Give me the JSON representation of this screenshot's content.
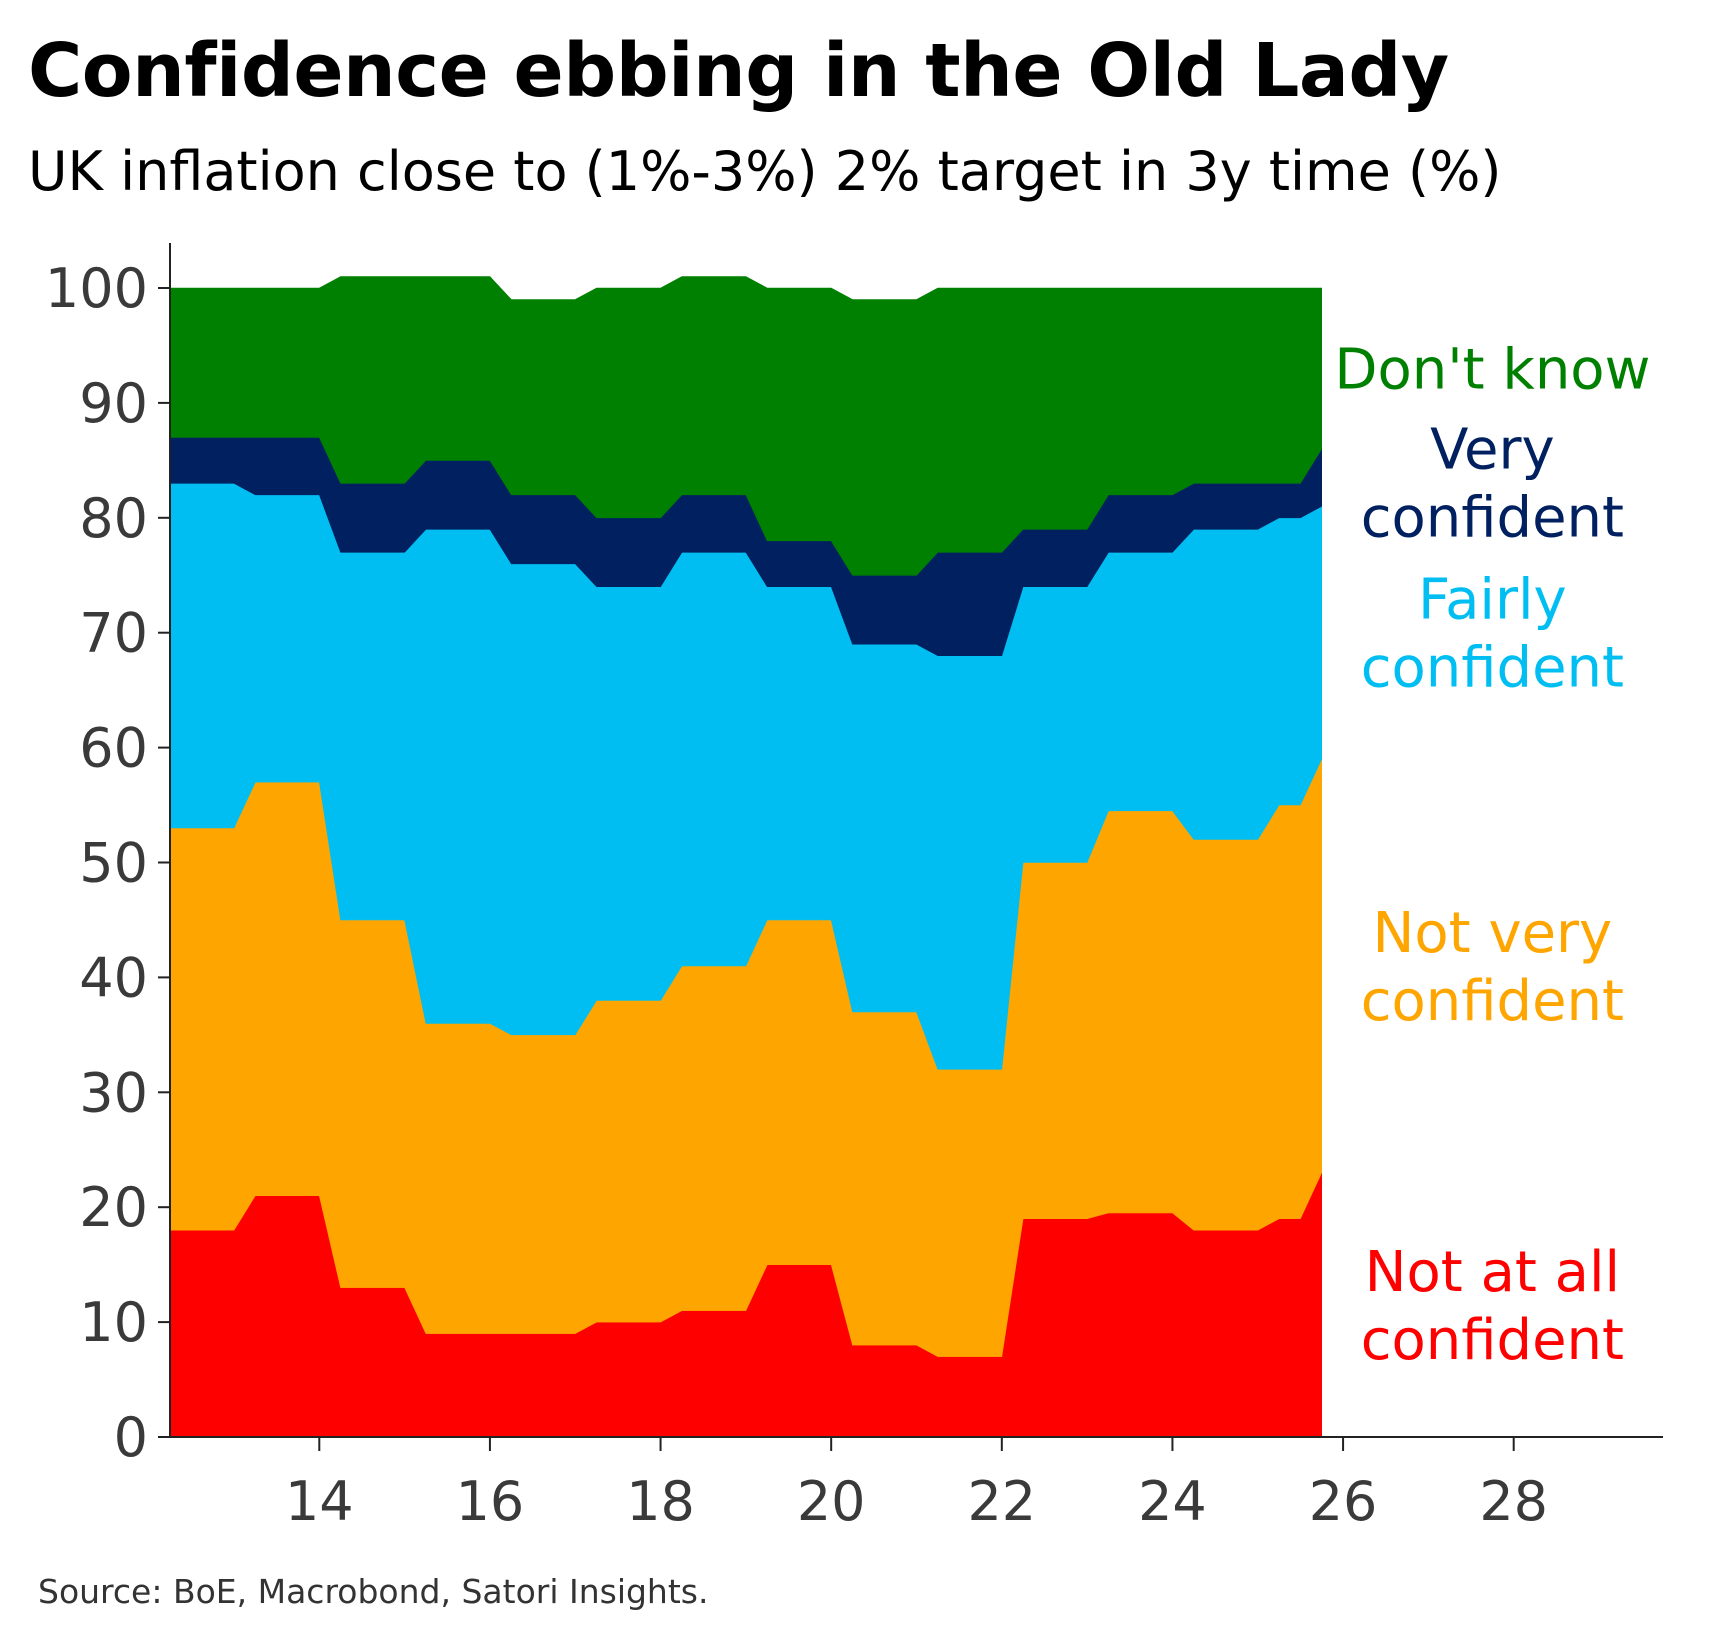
{
  "title": "Confidence ebbing in the Old Lady",
  "subtitle": "UK inflation close to (1%-3%) 2% target in 3y time (%)",
  "source": "Source: BoE, Macrobond, Satori Insights.",
  "chart_data": {
    "type": "area",
    "stacked": true,
    "x": [
      12.25,
      13.0,
      13.25,
      14.0,
      14.25,
      15.0,
      15.25,
      16.0,
      16.25,
      17.0,
      17.25,
      18.0,
      18.25,
      19.0,
      19.25,
      20.0,
      20.25,
      21.0,
      21.25,
      22.0,
      22.25,
      23.0,
      23.25,
      24.0,
      24.25,
      25.0,
      25.25,
      25.5,
      25.75
    ],
    "xlim": [
      12.25,
      29.75
    ],
    "xticks": [
      14,
      16,
      18,
      20,
      22,
      24,
      26,
      28
    ],
    "xtick_labels": [
      "14",
      "16",
      "18",
      "20",
      "22",
      "24",
      "26",
      "28"
    ],
    "ylim": [
      0,
      100
    ],
    "yticks": [
      0,
      10,
      20,
      30,
      40,
      50,
      60,
      70,
      80,
      90,
      100
    ],
    "ytick_labels": [
      "0",
      "10",
      "20",
      "30",
      "40",
      "50",
      "60",
      "70",
      "80",
      "90",
      "100"
    ],
    "series": [
      {
        "name": "Not at all confident",
        "label_lines": [
          "Not at all",
          "confident"
        ],
        "color": "#ff0000",
        "values": [
          18,
          18,
          21,
          21,
          13,
          13,
          9,
          9,
          9,
          9,
          10,
          10,
          11,
          11,
          15,
          15,
          8,
          8,
          7,
          7,
          19,
          19,
          19.5,
          19.5,
          18,
          18,
          19,
          19,
          23
        ]
      },
      {
        "name": "Not very confident",
        "label_lines": [
          "Not very",
          "confident"
        ],
        "color": "#ffa500",
        "values": [
          35,
          35,
          36,
          36,
          32,
          32,
          27,
          27,
          26,
          26,
          28,
          28,
          30,
          30,
          30,
          30,
          29,
          29,
          25,
          25,
          31,
          31,
          35,
          35,
          34,
          34,
          36,
          36,
          36
        ]
      },
      {
        "name": "Fairly confident",
        "label_lines": [
          "Fairly",
          "confident"
        ],
        "color": "#00bef2",
        "values": [
          30,
          30,
          25,
          25,
          32,
          32,
          43,
          43,
          41,
          41,
          36,
          36,
          36,
          36,
          29,
          29,
          32,
          32,
          36,
          36,
          24,
          24,
          22.5,
          22.5,
          27,
          27,
          25,
          25,
          22
        ]
      },
      {
        "name": "Very confident",
        "label_lines": [
          "Very",
          "confident"
        ],
        "color": "#002060",
        "values": [
          4,
          4,
          5,
          5,
          6,
          6,
          6,
          6,
          6,
          6,
          6,
          6,
          5,
          5,
          4,
          4,
          6,
          6,
          9,
          9,
          5,
          5,
          5,
          5,
          4,
          4,
          3,
          3,
          5
        ]
      },
      {
        "name": "Don't know",
        "label_lines": [
          "Don't know"
        ],
        "color": "#008000",
        "values": [
          13,
          13,
          13,
          13,
          18,
          18,
          16,
          16,
          17,
          17,
          20,
          20,
          19,
          19,
          22,
          22,
          24,
          24,
          23,
          23,
          21,
          21,
          18,
          18,
          17,
          17,
          17,
          17,
          14
        ]
      }
    ],
    "legend": "inline-right",
    "grid": false
  }
}
